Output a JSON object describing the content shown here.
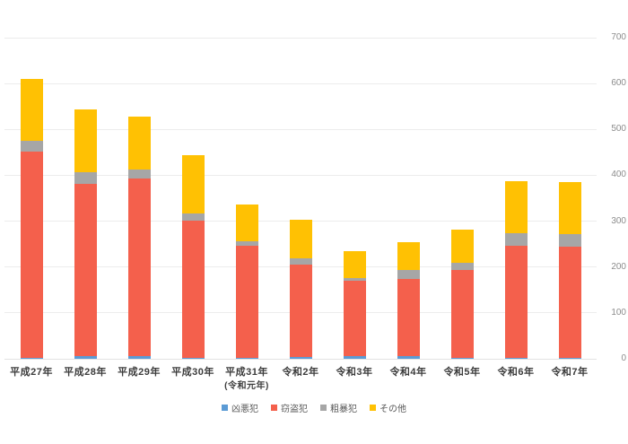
{
  "chart_data": {
    "type": "bar",
    "stacked": true,
    "title": "",
    "xlabel": "",
    "ylabel": "",
    "categories": [
      "平成27年",
      "平成28年",
      "平成29年",
      "平成30年",
      "平成31年",
      "令和2年",
      "令和3年",
      "令和4年",
      "令和5年",
      "令和6年",
      "令和7年"
    ],
    "category_sublabels": [
      "",
      "",
      "",
      "",
      "(令和元年)",
      "",
      "",
      "",
      "",
      "",
      ""
    ],
    "series": [
      {
        "name": "凶悪犯",
        "color": "#5b9bd5",
        "values": [
          2,
          5,
          5,
          2,
          2,
          3,
          5,
          5,
          2,
          2,
          2
        ]
      },
      {
        "name": "窃盗犯",
        "color": "#f4604c",
        "values": [
          450,
          377,
          388,
          299,
          245,
          202,
          166,
          170,
          191,
          245,
          242
        ]
      },
      {
        "name": "粗暴犯",
        "color": "#a6a6a6",
        "values": [
          24,
          25,
          20,
          15,
          10,
          14,
          6,
          18,
          16,
          26,
          27
        ]
      },
      {
        "name": "その他",
        "color": "#ffc103",
        "values": [
          135,
          137,
          116,
          127,
          80,
          84,
          57,
          62,
          73,
          114,
          115
        ]
      }
    ],
    "totals": [
      611,
      544,
      529,
      443,
      337,
      303,
      234,
      255,
      282,
      387,
      386
    ],
    "ylim": [
      0,
      700
    ],
    "yticks": [
      0,
      100,
      200,
      300,
      400,
      500,
      600,
      700
    ],
    "grid": true,
    "y_axis_side": "right",
    "legend_position": "bottom",
    "gridline_color": "#ececec",
    "tick_label_color": "#8c8c8c",
    "category_label_color": "#3b3b3b"
  }
}
